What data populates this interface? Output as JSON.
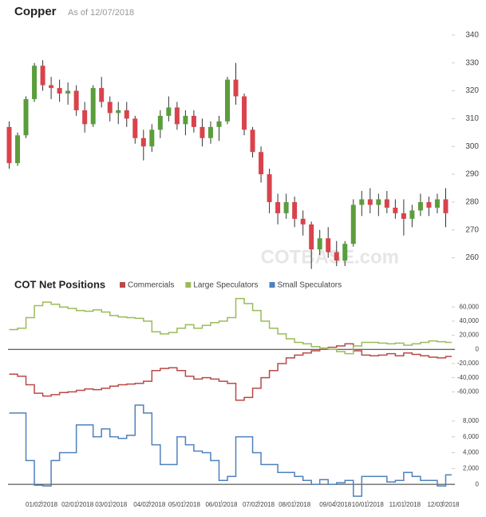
{
  "chart_data": [
    {
      "type": "candlestick",
      "title": "Copper",
      "subtitle": "As of 12/07/2018",
      "watermark": "COTBASE.com",
      "x": [
        "12/06/2017",
        "12/13/2017",
        "12/20/2017",
        "12/27/2017",
        "01/03/2018",
        "01/10/2018",
        "01/17/2018",
        "01/24/2018",
        "01/31/2018",
        "02/07/2018",
        "02/14/2018",
        "02/21/2018",
        "02/28/2018",
        "03/07/2018",
        "03/14/2018",
        "03/21/2018",
        "03/28/2018",
        "04/04/2018",
        "04/11/2018",
        "04/18/2018",
        "04/25/2018",
        "05/02/2018",
        "05/09/2018",
        "05/16/2018",
        "05/23/2018",
        "05/30/2018",
        "06/06/2018",
        "06/13/2018",
        "06/20/2018",
        "06/27/2018",
        "07/04/2018",
        "07/11/2018",
        "07/18/2018",
        "07/25/2018",
        "08/01/2018",
        "08/08/2018",
        "08/15/2018",
        "08/22/2018",
        "08/29/2018",
        "09/05/2018",
        "09/12/2018",
        "09/19/2018",
        "09/26/2018",
        "10/03/2018",
        "10/10/2018",
        "10/17/2018",
        "10/24/2018",
        "10/31/2018",
        "11/07/2018",
        "11/14/2018",
        "11/21/2018",
        "11/28/2018",
        "12/05/2018"
      ],
      "open": [
        307,
        294,
        304,
        317,
        329,
        322,
        321,
        319,
        320,
        313,
        308,
        321,
        316,
        312,
        313,
        310,
        303,
        300,
        306,
        311,
        314,
        308,
        311,
        307,
        303,
        307,
        309,
        324,
        318,
        306,
        298,
        290,
        280,
        276,
        280,
        274,
        272,
        263,
        267,
        262,
        259,
        265,
        279,
        281,
        279,
        281,
        278,
        276,
        274,
        277,
        280,
        278,
        281
      ],
      "high": [
        309,
        305,
        318,
        330,
        331,
        325,
        324,
        323,
        322,
        316,
        322,
        325,
        318,
        316,
        316,
        311,
        306,
        308,
        313,
        318,
        316,
        313,
        313,
        310,
        309,
        311,
        325,
        330,
        319,
        307,
        300,
        292,
        283,
        283,
        282,
        277,
        273,
        270,
        271,
        266,
        266,
        281,
        284,
        285,
        283,
        284,
        281,
        281,
        279,
        283,
        282,
        283,
        285
      ],
      "low": [
        292,
        293,
        303,
        316,
        320,
        317,
        316,
        315,
        311,
        305,
        307,
        314,
        309,
        308,
        307,
        301,
        295,
        298,
        303,
        309,
        306,
        304,
        305,
        300,
        301,
        302,
        308,
        315,
        304,
        296,
        287,
        276,
        272,
        274,
        271,
        268,
        256,
        261,
        260,
        257,
        257,
        264,
        275,
        276,
        275,
        276,
        274,
        268,
        271,
        275,
        275,
        276,
        271
      ],
      "close": [
        294,
        304,
        317,
        329,
        322,
        321,
        319,
        320,
        313,
        308,
        321,
        316,
        312,
        313,
        310,
        303,
        300,
        306,
        311,
        314,
        308,
        311,
        307,
        303,
        307,
        309,
        324,
        318,
        306,
        298,
        290,
        280,
        276,
        280,
        274,
        272,
        263,
        267,
        262,
        259,
        265,
        279,
        281,
        279,
        281,
        278,
        276,
        274,
        277,
        280,
        278,
        281,
        276
      ],
      "up_color": "#5a9e3c",
      "down_color": "#d9434c",
      "xlim": [
        "12/05/2017",
        "12/10/2018"
      ],
      "ylim": [
        255,
        344
      ],
      "yticks": [
        260,
        270,
        280,
        290,
        300,
        310,
        320,
        330,
        340
      ]
    },
    {
      "type": "step",
      "title": "COT Net Positions",
      "x": [
        "12/06/2017",
        "12/13/2017",
        "12/20/2017",
        "12/27/2017",
        "01/03/2018",
        "01/10/2018",
        "01/17/2018",
        "01/24/2018",
        "01/31/2018",
        "02/07/2018",
        "02/14/2018",
        "02/21/2018",
        "02/28/2018",
        "03/07/2018",
        "03/14/2018",
        "03/21/2018",
        "03/28/2018",
        "04/04/2018",
        "04/11/2018",
        "04/18/2018",
        "04/25/2018",
        "05/02/2018",
        "05/09/2018",
        "05/16/2018",
        "05/23/2018",
        "05/30/2018",
        "06/06/2018",
        "06/13/2018",
        "06/20/2018",
        "06/27/2018",
        "07/04/2018",
        "07/11/2018",
        "07/18/2018",
        "07/25/2018",
        "08/01/2018",
        "08/08/2018",
        "08/15/2018",
        "08/22/2018",
        "08/29/2018",
        "09/05/2018",
        "09/12/2018",
        "09/19/2018",
        "09/26/2018",
        "10/03/2018",
        "10/10/2018",
        "10/17/2018",
        "10/24/2018",
        "10/31/2018",
        "11/07/2018",
        "11/14/2018",
        "11/21/2018",
        "11/28/2018",
        "12/05/2018"
      ],
      "series": [
        {
          "name": "Commercials",
          "color": "#b94a48",
          "values": [
            -35000,
            -38000,
            -50000,
            -62000,
            -66000,
            -64000,
            -61000,
            -60000,
            -58000,
            -56000,
            -57000,
            -55000,
            -52000,
            -50000,
            -49000,
            -48000,
            -45000,
            -30000,
            -27000,
            -26000,
            -30000,
            -38000,
            -42000,
            -40000,
            -42000,
            -45000,
            -48000,
            -72000,
            -68000,
            -55000,
            -40000,
            -30000,
            -20000,
            -12000,
            -8000,
            -5000,
            -2000,
            0,
            3000,
            5000,
            8000,
            -2000,
            -8000,
            -9000,
            -8000,
            -6000,
            -9000,
            -5000,
            -7000,
            -9000,
            -11000,
            -12000,
            -10000
          ]
        },
        {
          "name": "Large Speculators",
          "color": "#9bbb59",
          "values": [
            28000,
            30000,
            45000,
            62000,
            67000,
            64000,
            60000,
            58000,
            55000,
            54000,
            56000,
            53000,
            48000,
            46000,
            45000,
            44000,
            40000,
            25000,
            22000,
            24000,
            30000,
            35000,
            30000,
            34000,
            38000,
            40000,
            45000,
            72000,
            65000,
            55000,
            40000,
            30000,
            22000,
            15000,
            10000,
            8000,
            4000,
            2000,
            0,
            -3000,
            -6000,
            5000,
            10000,
            10000,
            9000,
            8000,
            9000,
            6000,
            8000,
            10000,
            12000,
            11000,
            10000
          ]
        }
      ],
      "xlim": [
        "12/05/2017",
        "12/10/2018"
      ],
      "ylim": [
        -80000,
        75000
      ],
      "yticks": [
        {
          "value": -60000,
          "label": "-60,000"
        },
        {
          "value": -40000,
          "label": "-40,000"
        },
        {
          "value": -20000,
          "label": "-20,000"
        },
        0,
        {
          "value": 20000,
          "label": "20,000"
        },
        {
          "value": 40000,
          "label": "40,000"
        },
        {
          "value": 60000,
          "label": "60,000"
        }
      ]
    },
    {
      "type": "step",
      "x": [
        "12/06/2017",
        "12/13/2017",
        "12/20/2017",
        "12/27/2017",
        "01/03/2018",
        "01/10/2018",
        "01/17/2018",
        "01/24/2018",
        "01/31/2018",
        "02/07/2018",
        "02/14/2018",
        "02/21/2018",
        "02/28/2018",
        "03/07/2018",
        "03/14/2018",
        "03/21/2018",
        "03/28/2018",
        "04/04/2018",
        "04/11/2018",
        "04/18/2018",
        "04/25/2018",
        "05/02/2018",
        "05/09/2018",
        "05/16/2018",
        "05/23/2018",
        "05/30/2018",
        "06/06/2018",
        "06/13/2018",
        "06/20/2018",
        "06/27/2018",
        "07/04/2018",
        "07/11/2018",
        "07/18/2018",
        "07/25/2018",
        "08/01/2018",
        "08/08/2018",
        "08/15/2018",
        "08/22/2018",
        "08/29/2018",
        "09/05/2018",
        "09/12/2018",
        "09/19/2018",
        "09/26/2018",
        "10/03/2018",
        "10/10/2018",
        "10/17/2018",
        "10/24/2018",
        "10/31/2018",
        "11/07/2018",
        "11/14/2018",
        "11/21/2018",
        "11/28/2018",
        "12/05/2018"
      ],
      "series": [
        {
          "name": "Small Speculators",
          "color": "#4f81bd",
          "values": [
            9000,
            9000,
            3000,
            -100,
            -200,
            3000,
            4000,
            4000,
            7500,
            7500,
            6000,
            7000,
            6000,
            5800,
            6200,
            10000,
            9000,
            5000,
            2500,
            2500,
            6000,
            5000,
            4200,
            4000,
            3000,
            500,
            1000,
            6000,
            6000,
            4000,
            2500,
            2500,
            1500,
            1500,
            1000,
            500,
            0,
            600,
            0,
            200,
            500,
            -1500,
            1000,
            1000,
            1000,
            300,
            500,
            1500,
            1000,
            500,
            500,
            -200,
            1200
          ]
        }
      ],
      "xlim": [
        "12/05/2017",
        "12/10/2018"
      ],
      "ylim": [
        -1800,
        9800
      ],
      "yticks": [
        0,
        {
          "value": 2000,
          "label": "2,000"
        },
        {
          "value": 4000,
          "label": "4,000"
        },
        {
          "value": 6000,
          "label": "6,000"
        },
        {
          "value": 8000,
          "label": "8,000"
        }
      ],
      "xticks": [
        "01/02/2018",
        "02/01/2018",
        "03/01/2018",
        "04/02/2018",
        "05/01/2018",
        "06/01/2018",
        "07/02/2018",
        "08/01/2018",
        "09/04/2018",
        "10/01/2018",
        "11/01/2018",
        "12/03/2018"
      ]
    }
  ]
}
